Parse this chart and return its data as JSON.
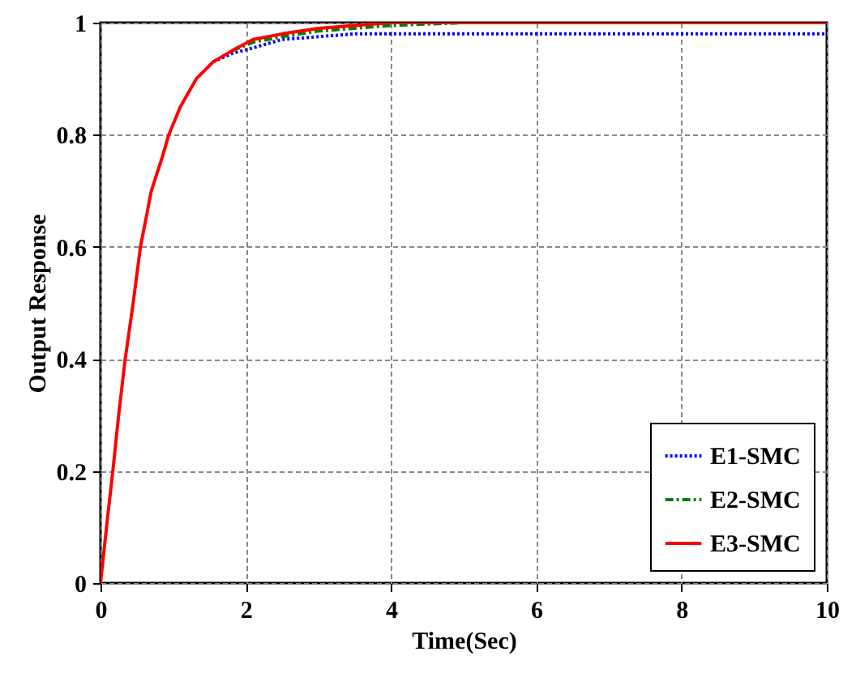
{
  "chart_data": {
    "type": "line",
    "xlabel": "Time(Sec)",
    "ylabel": "Output Response",
    "xlim": [
      0,
      10
    ],
    "ylim": [
      0,
      1
    ],
    "xticks": [
      0,
      2,
      4,
      6,
      8,
      10
    ],
    "yticks": [
      0,
      0.2,
      0.4,
      0.6,
      0.8,
      1
    ],
    "grid": true,
    "legend": "bottom right",
    "series": [
      {
        "name": "E1-SMC",
        "color": "#0000ff",
        "line_style": "dotted",
        "x": [
          1.55,
          1.81,
          2.1,
          2.5,
          3,
          3.5,
          4,
          5,
          6,
          8,
          10
        ],
        "values": [
          0.93,
          0.945,
          0.955,
          0.97,
          0.975,
          0.98,
          0.98,
          0.98,
          0.98,
          0.98,
          0.98
        ]
      },
      {
        "name": "E2-SMC",
        "color": "#008000",
        "line_style": "dashed",
        "x": [
          1.81,
          2.1,
          2.5,
          3,
          3.5,
          4,
          5
        ],
        "values": [
          0.95,
          0.965,
          0.975,
          0.985,
          0.99,
          0.995,
          1
        ]
      },
      {
        "name": "E3-SMC",
        "color": "#ff0000",
        "line_style": "solid",
        "x": [
          0,
          0.05,
          0.1,
          0.17,
          0.25,
          0.34,
          0.45,
          0.55,
          0.7,
          0.85,
          0.94,
          1.1,
          1.32,
          1.55,
          1.81,
          2.1,
          2.5,
          3,
          3.5,
          4,
          5,
          6,
          8,
          10
        ],
        "values": [
          0,
          0.06,
          0.12,
          0.2,
          0.3,
          0.4,
          0.5,
          0.6,
          0.7,
          0.76,
          0.8,
          0.85,
          0.9,
          0.93,
          0.95,
          0.97,
          0.98,
          0.99,
          0.995,
          1,
          1,
          1,
          1,
          1
        ]
      }
    ]
  }
}
